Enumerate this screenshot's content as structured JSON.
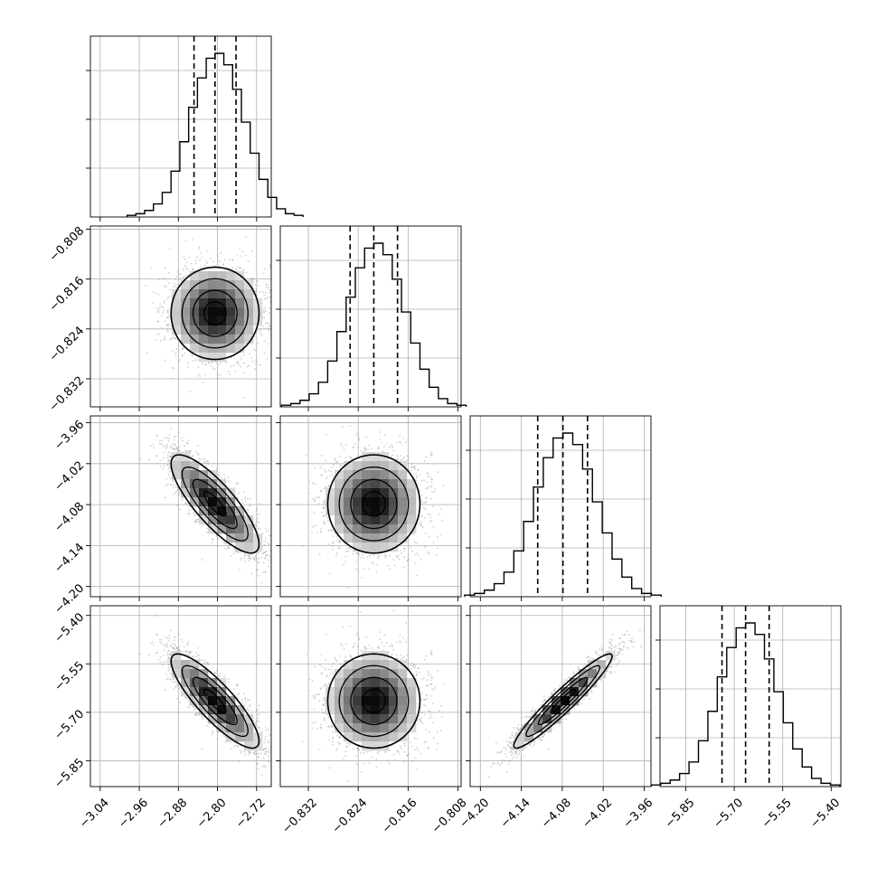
{
  "chart_data": {
    "type": "corner",
    "grid": true,
    "parameters": [
      {
        "range": [
          -3.06,
          -2.69
        ],
        "ticks": [
          -3.04,
          -2.96,
          -2.88,
          -2.8,
          -2.72
        ],
        "tick_labels": [
          "−3.04",
          "−2.96",
          "−2.88",
          "−2.80",
          "−2.72"
        ],
        "mean": -2.805,
        "sd": 0.045,
        "quantiles": [
          -2.848,
          -2.805,
          -2.762
        ]
      },
      {
        "range": [
          -0.8365,
          -0.8075
        ],
        "ticks": [
          -0.832,
          -0.824,
          -0.816,
          -0.808
        ],
        "tick_labels": [
          "−0.832",
          "−0.824",
          "−0.816",
          "−0.808"
        ],
        "mean": -0.8215,
        "sd": 0.0037,
        "quantiles": [
          -0.8253,
          -0.8215,
          -0.8177
        ]
      },
      {
        "range": [
          -4.215,
          -3.95
        ],
        "ticks": [
          -4.2,
          -4.14,
          -4.08,
          -4.02,
          -3.96
        ],
        "tick_labels": [
          "−4.20",
          "−4.14",
          "−4.08",
          "−4.02",
          "−3.96"
        ],
        "mean": -4.079,
        "sd": 0.036,
        "quantiles": [
          -4.116,
          -4.079,
          -4.043
        ]
      },
      {
        "range": [
          -5.93,
          -5.37
        ],
        "ticks": [
          -5.85,
          -5.7,
          -5.55,
          -5.4
        ],
        "tick_labels": [
          "−5.85",
          "−5.70",
          "−5.55",
          "−5.40"
        ],
        "mean": -5.665,
        "sd": 0.073,
        "quantiles": [
          -5.738,
          -5.665,
          -5.592
        ]
      }
    ],
    "correlations": {
      "1-0": 0.0,
      "2-0": -0.82,
      "2-1": 0.0,
      "3-0": -0.85,
      "3-1": 0.0,
      "3-2": 0.95
    },
    "histogram": {
      "bins": 20,
      "relative_heights": [
        0.01,
        0.02,
        0.04,
        0.08,
        0.15,
        0.28,
        0.46,
        0.67,
        0.85,
        0.97,
        1.0,
        0.93,
        0.78,
        0.58,
        0.39,
        0.23,
        0.12,
        0.05,
        0.02,
        0.01
      ]
    },
    "contour_levels_sigma": [
      0.5,
      1.0,
      1.5,
      2.0
    ]
  }
}
